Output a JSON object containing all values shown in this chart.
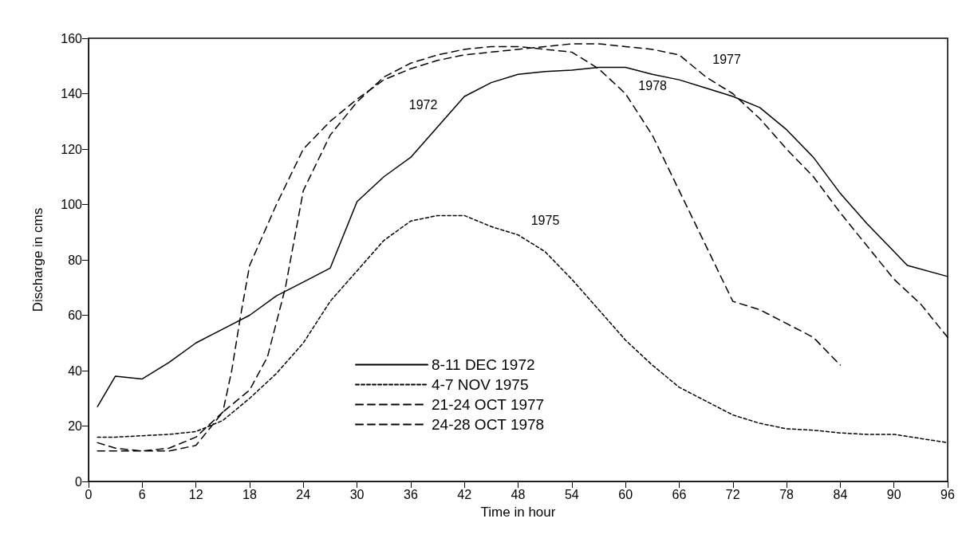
{
  "chart_data": {
    "type": "line",
    "xlabel": "Time in hour",
    "ylabel": "Discharge in cms",
    "xlim": [
      0,
      96
    ],
    "xticks": [
      0,
      6,
      12,
      18,
      24,
      30,
      36,
      42,
      48,
      54,
      60,
      66,
      72,
      78,
      84,
      90,
      96
    ],
    "ylim": [
      0,
      160
    ],
    "yticks": [
      0,
      20,
      40,
      60,
      80,
      100,
      120,
      140,
      160
    ],
    "grid": false,
    "legend": "bottom",
    "marker": "none",
    "series": [
      {
        "name": "8-11 DEC 1972",
        "color": "#000000",
        "line_style": "solid",
        "x": [
          1,
          3,
          6,
          9,
          12,
          15,
          18,
          21,
          24,
          27,
          30,
          33,
          36,
          39,
          42,
          45,
          48,
          51,
          54,
          57,
          60,
          63,
          66,
          69,
          72,
          75,
          78,
          81,
          84,
          87,
          90,
          91.5,
          96
        ],
        "values": [
          27,
          38,
          37,
          43,
          50,
          55,
          60,
          67,
          72,
          77,
          101,
          110,
          117,
          128,
          139,
          144,
          147,
          148,
          148.5,
          149.5,
          149.5,
          147,
          145,
          142,
          139,
          135,
          127,
          117,
          104,
          93,
          83,
          78,
          74
        ]
      },
      {
        "name": "4-7 NOV 1975",
        "color": "#000000",
        "line_style": "dotted",
        "x": [
          1,
          3,
          6,
          9,
          12,
          15,
          18,
          21,
          24,
          27,
          30,
          33,
          36,
          39,
          42,
          45,
          48,
          51,
          54,
          57,
          60,
          63,
          66,
          69,
          72,
          75,
          78,
          81,
          84,
          87,
          90,
          93,
          96
        ],
        "values": [
          16,
          16,
          16.5,
          17,
          18,
          22,
          30,
          39,
          50,
          65,
          76,
          87,
          94,
          96,
          96,
          92,
          89,
          83,
          73,
          62,
          51,
          42,
          34,
          29,
          24,
          21,
          19,
          18.5,
          17.5,
          17,
          17,
          15.5,
          14
        ]
      },
      {
        "name": "21-24 OCT 1977",
        "color": "#000000",
        "line_style": "dashed",
        "x": [
          1,
          3,
          6,
          9,
          12,
          15,
          16,
          17,
          18,
          21,
          24,
          27,
          30,
          33,
          36,
          39,
          42,
          45,
          48,
          51,
          54,
          57,
          60,
          63,
          66,
          69,
          72,
          75,
          78,
          81,
          84,
          87,
          90,
          93,
          96
        ],
        "values": [
          14,
          12,
          11,
          12,
          16,
          25,
          40,
          60,
          78,
          100,
          120,
          130,
          138,
          145,
          149,
          152,
          154,
          155,
          156,
          157,
          158,
          158,
          157,
          156,
          154,
          146,
          140,
          131,
          120,
          110,
          97,
          85,
          73,
          64,
          52
        ]
      },
      {
        "name": "24-28 OCT 1978",
        "color": "#000000",
        "line_style": "dashed",
        "x": [
          1,
          3,
          6,
          9,
          12,
          15,
          18,
          20,
          22,
          24,
          27,
          30,
          33,
          36,
          39,
          42,
          45,
          48,
          51,
          54,
          57,
          60,
          63,
          66,
          69,
          72,
          75,
          78,
          81,
          84
        ],
        "values": [
          11,
          11,
          11,
          11,
          13,
          25,
          33,
          45,
          70,
          105,
          125,
          137,
          146,
          151,
          154,
          156,
          157,
          157,
          156,
          155,
          149,
          140,
          125,
          105,
          85,
          65,
          62,
          57,
          52,
          42
        ]
      }
    ],
    "annotations": [
      {
        "text": "1972",
        "x": 39,
        "y": 128
      },
      {
        "text": "1975",
        "x": 48,
        "y": 89
      },
      {
        "text": "1977",
        "x": 69,
        "y": 146
      },
      {
        "text": "1978",
        "x": 60,
        "y": 140
      }
    ]
  }
}
